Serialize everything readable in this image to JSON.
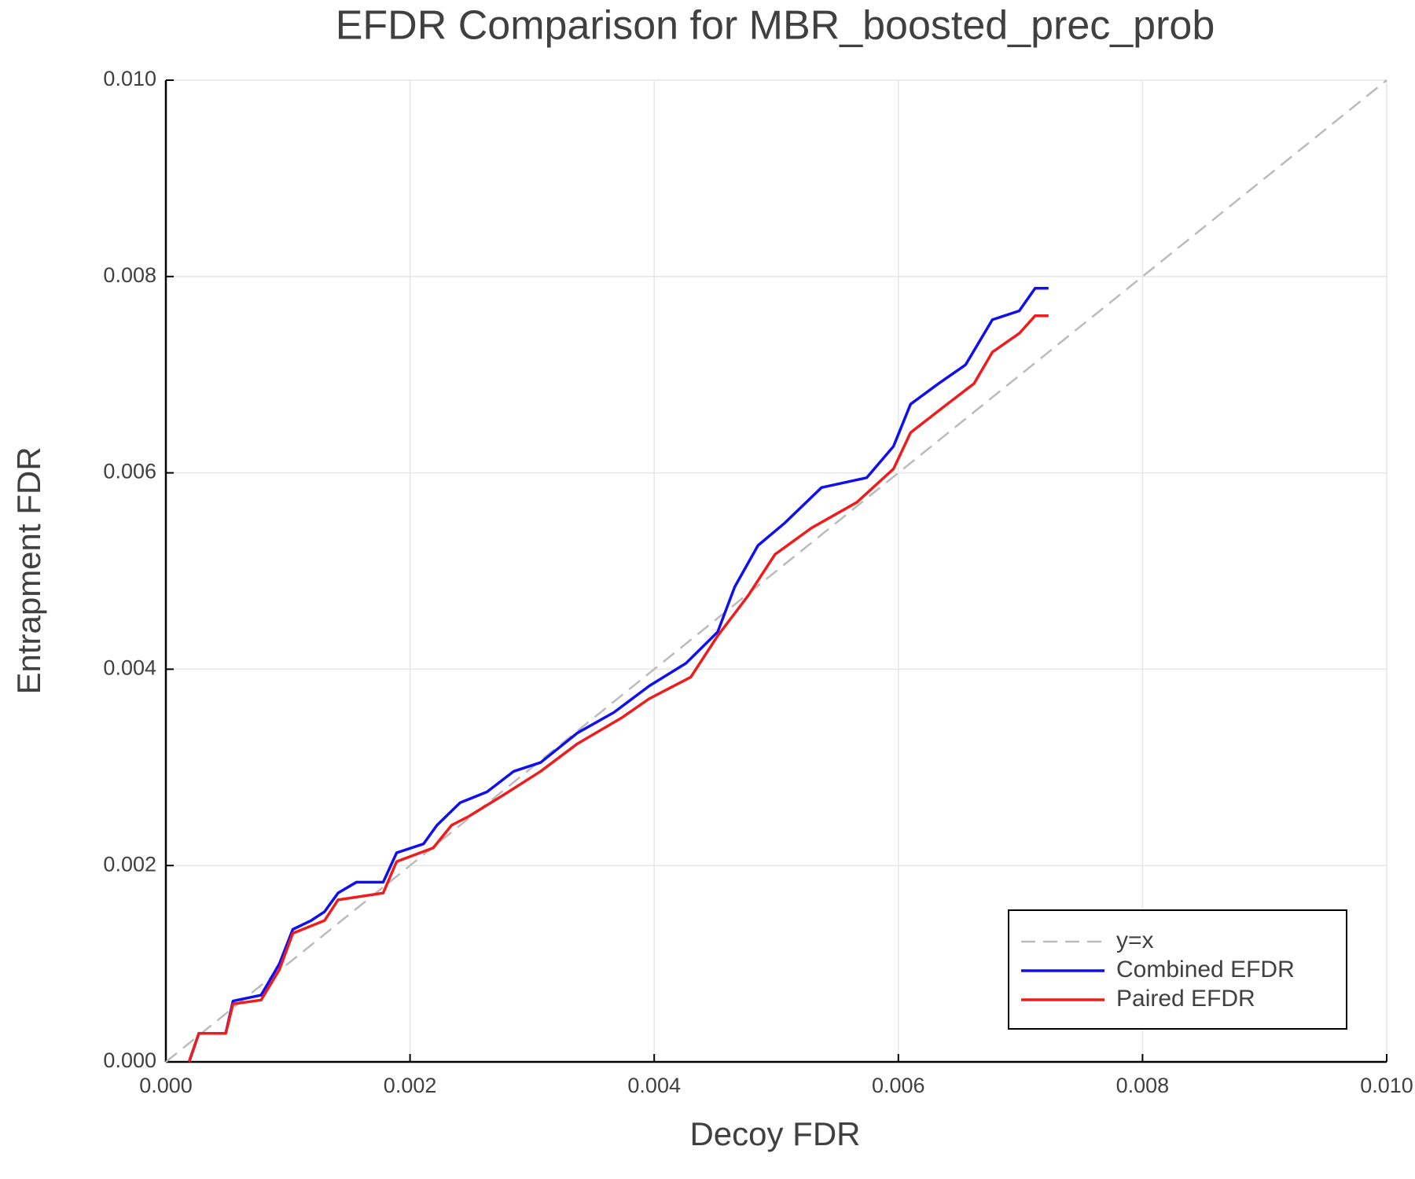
{
  "chart_data": {
    "type": "line",
    "title": "EFDR Comparison for MBR_boosted_prec_prob",
    "x_label": "Decoy FDR",
    "y_label": "Entrapment FDR",
    "xlim": [
      0,
      0.01
    ],
    "ylim": [
      0,
      0.01
    ],
    "xticks": [
      {
        "value": 0,
        "label": "0.000"
      },
      {
        "value": 0.002,
        "label": "0.002"
      },
      {
        "value": 0.004,
        "label": "0.004"
      },
      {
        "value": 0.006,
        "label": "0.006"
      },
      {
        "value": 0.008,
        "label": "0.008"
      },
      {
        "value": 0.01,
        "label": "0.010"
      }
    ],
    "yticks": [
      {
        "value": 0,
        "label": "0.000"
      },
      {
        "value": 0.002,
        "label": "0.002"
      },
      {
        "value": 0.004,
        "label": "0.004"
      },
      {
        "value": 0.006,
        "label": "0.006"
      },
      {
        "value": 0.008,
        "label": "0.008"
      },
      {
        "value": 0.01,
        "label": "0.010"
      }
    ],
    "grid": true,
    "legend": "bottom-right",
    "series": [
      {
        "name": "y=x",
        "color": "#bbbbbb",
        "dashed": true,
        "x": [
          0,
          0.01
        ],
        "values": [
          0,
          0.01
        ]
      },
      {
        "name": "Combined EFDR",
        "color": "#1010ee",
        "dashed": false,
        "x": [
          0.00019,
          0.00027,
          0.00049,
          0.00055,
          0.00078,
          0.00086,
          0.00093,
          0.00104,
          0.00119,
          0.0013,
          0.00141,
          0.00156,
          0.00178,
          0.00189,
          0.00211,
          0.00222,
          0.00241,
          0.00263,
          0.00285,
          0.00307,
          0.00337,
          0.00367,
          0.00396,
          0.00426,
          0.00452,
          0.00466,
          0.00485,
          0.00507,
          0.00537,
          0.00574,
          0.00596,
          0.0061,
          0.00633,
          0.00655,
          0.00677,
          0.00699,
          0.00712,
          0.00723
        ],
        "values": [
          0,
          0.00029,
          0.00029,
          0.00062,
          0.00068,
          0.00085,
          0.001,
          0.00135,
          0.00144,
          0.00153,
          0.00172,
          0.00183,
          0.00183,
          0.00213,
          0.00222,
          0.00241,
          0.00264,
          0.00275,
          0.00296,
          0.00305,
          0.00335,
          0.00356,
          0.00383,
          0.00406,
          0.00438,
          0.00484,
          0.00526,
          0.00549,
          0.00585,
          0.00595,
          0.00627,
          0.0067,
          0.00691,
          0.0071,
          0.00756,
          0.00765,
          0.00788,
          0.00788
        ]
      },
      {
        "name": "Paired EFDR",
        "color": "#ee1c1c",
        "dashed": false,
        "x": [
          0.00019,
          0.00027,
          0.00049,
          0.00055,
          0.00078,
          0.00093,
          0.00104,
          0.0013,
          0.00141,
          0.00178,
          0.00189,
          0.00219,
          0.00234,
          0.00248,
          0.00278,
          0.00307,
          0.00337,
          0.00374,
          0.00396,
          0.0043,
          0.00452,
          0.00477,
          0.00499,
          0.00529,
          0.00566,
          0.00596,
          0.0061,
          0.0064,
          0.00662,
          0.00677,
          0.00699,
          0.00712,
          0.00723
        ],
        "values": [
          0,
          0.00029,
          0.00029,
          0.00059,
          0.00063,
          0.00094,
          0.00131,
          0.00144,
          0.00165,
          0.00172,
          0.00204,
          0.00218,
          0.00241,
          0.0025,
          0.00273,
          0.00296,
          0.00324,
          0.00351,
          0.0037,
          0.00392,
          0.00434,
          0.00475,
          0.00517,
          0.00544,
          0.0057,
          0.00604,
          0.00641,
          0.0067,
          0.00691,
          0.00723,
          0.00742,
          0.0076,
          0.0076
        ]
      }
    ]
  }
}
